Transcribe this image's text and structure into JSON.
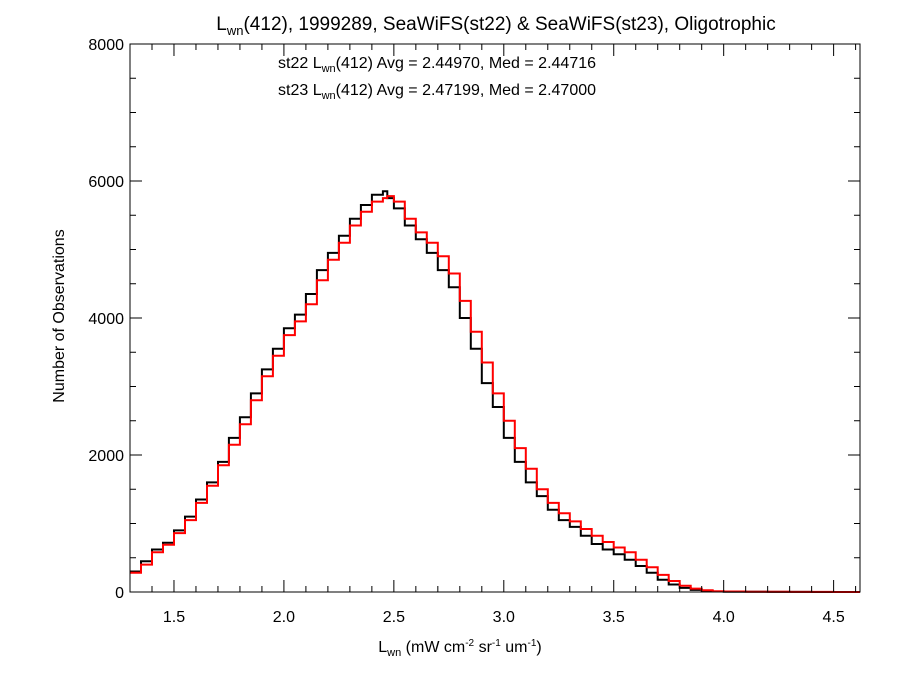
{
  "chart_data": {
    "type": "line",
    "step": true,
    "title": {
      "sym": "L",
      "sub": "wn",
      "rest": "(412), 1999289, SeaWiFS(st22) & SeaWiFS(st23), Oligotrophic"
    },
    "xlabel": {
      "sym": "L",
      "sub": "wn",
      "a": " (mW cm",
      "sup1": "-2",
      "b": " sr",
      "sup2": "-1",
      "c": " um",
      "sup3": "-1",
      "d": ")"
    },
    "ylabel": "Number of Observations",
    "xlim": [
      1.3,
      4.62
    ],
    "ylim": [
      0,
      8000
    ],
    "xticks": [
      "1.5",
      "2.0",
      "2.5",
      "3.0",
      "3.5",
      "4.0",
      "4.5"
    ],
    "yticks": [
      "0",
      "2000",
      "4000",
      "6000",
      "8000"
    ],
    "grid": false,
    "colors": {
      "st22": "#000000",
      "st23": "#ff0000"
    },
    "annotations": [
      {
        "pre": "st22 L",
        "sub": "wn",
        "post": "(412) Avg = 2.44970, Med = 2.44716",
        "color": "#000000"
      },
      {
        "pre": "st23 L",
        "sub": "wn",
        "post": "(412) Avg = 2.47199, Med = 2.47000",
        "color": "#ff0000"
      }
    ],
    "x": [
      1.3,
      1.35,
      1.4,
      1.45,
      1.5,
      1.55,
      1.6,
      1.65,
      1.7,
      1.75,
      1.8,
      1.85,
      1.9,
      1.95,
      2.0,
      2.05,
      2.1,
      2.15,
      2.2,
      2.25,
      2.3,
      2.35,
      2.4,
      2.45,
      2.47,
      2.5,
      2.55,
      2.6,
      2.65,
      2.7,
      2.75,
      2.8,
      2.85,
      2.9,
      2.95,
      3.0,
      3.05,
      3.1,
      3.15,
      3.2,
      3.25,
      3.3,
      3.35,
      3.4,
      3.45,
      3.5,
      3.55,
      3.6,
      3.65,
      3.7,
      3.75,
      3.8,
      3.85,
      3.9,
      3.95,
      4.0,
      4.1,
      4.2,
      4.3,
      4.4,
      4.5,
      4.62
    ],
    "series": [
      {
        "name": "st22",
        "values": [
          300,
          450,
          620,
          720,
          900,
          1100,
          1350,
          1600,
          1900,
          2250,
          2550,
          2900,
          3250,
          3550,
          3850,
          4050,
          4350,
          4700,
          4950,
          5200,
          5450,
          5650,
          5800,
          5850,
          5750,
          5600,
          5350,
          5150,
          4950,
          4700,
          4450,
          4000,
          3550,
          3050,
          2700,
          2250,
          1900,
          1600,
          1400,
          1200,
          1050,
          950,
          820,
          700,
          620,
          550,
          470,
          380,
          280,
          180,
          110,
          60,
          30,
          15,
          8,
          5,
          3,
          2,
          1,
          0,
          0,
          0
        ]
      },
      {
        "name": "st23",
        "values": [
          280,
          400,
          580,
          690,
          860,
          1050,
          1300,
          1550,
          1850,
          2150,
          2450,
          2800,
          3150,
          3450,
          3750,
          3950,
          4200,
          4550,
          4850,
          5100,
          5350,
          5550,
          5700,
          5750,
          5780,
          5700,
          5450,
          5250,
          5100,
          4900,
          4650,
          4250,
          3800,
          3350,
          2900,
          2500,
          2100,
          1800,
          1500,
          1300,
          1150,
          1030,
          920,
          820,
          730,
          650,
          580,
          470,
          360,
          250,
          160,
          90,
          50,
          25,
          12,
          8,
          4,
          3,
          2,
          1,
          0,
          0
        ]
      }
    ]
  }
}
